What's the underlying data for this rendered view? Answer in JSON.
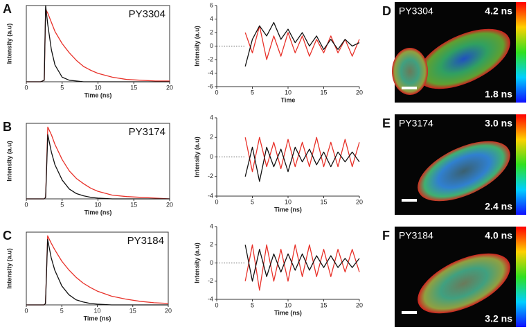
{
  "chart_data": [
    {
      "type": "line",
      "panel_label": "A",
      "annotation": "PY3304",
      "xlabel": "Time (ns)",
      "ylabel": "Intensity (a.u)",
      "xlim": [
        0,
        20
      ],
      "ylim": [
        0,
        1
      ],
      "xticks": [
        0,
        5,
        10,
        15,
        20
      ],
      "x": [
        0,
        2,
        2.5,
        2.7,
        3,
        3.5,
        4,
        5,
        6,
        7,
        8,
        9,
        10,
        12,
        14,
        16,
        18,
        20
      ],
      "series": [
        {
          "color": "#e8322a",
          "values": [
            0,
            0,
            0.02,
            0.95,
            0.9,
            0.78,
            0.66,
            0.5,
            0.38,
            0.28,
            0.2,
            0.15,
            0.11,
            0.06,
            0.03,
            0.02,
            0.01,
            0.01
          ]
        },
        {
          "color": "#111111",
          "values": [
            0,
            0,
            0.02,
            1.0,
            0.75,
            0.42,
            0.22,
            0.06,
            0.02,
            0.01,
            0,
            0,
            0,
            0,
            0,
            0,
            0,
            0
          ]
        }
      ]
    },
    {
      "type": "line",
      "xlabel": "Time",
      "ylabel": "Intensity (a.u)",
      "xlim": [
        0,
        20
      ],
      "ylim": [
        -6,
        6
      ],
      "xticks": [
        0,
        5,
        10,
        15,
        20
      ],
      "yticks": [
        -6,
        -4,
        -2,
        0,
        2,
        4,
        6
      ],
      "reference_y": 0,
      "x": [
        4,
        5,
        6,
        7,
        8,
        9,
        10,
        11,
        12,
        13,
        14,
        15,
        16,
        17,
        18,
        19,
        20
      ],
      "series": [
        {
          "color": "#e8322a",
          "values": [
            2,
            -1,
            3,
            -2,
            1.5,
            -1.5,
            2,
            -1,
            1.5,
            -1.5,
            1,
            -1,
            1.5,
            -1,
            1,
            -1.5,
            1
          ]
        },
        {
          "color": "#111111",
          "values": [
            -3,
            1,
            3,
            1.5,
            3.5,
            1,
            2.5,
            0.5,
            2,
            0,
            1.5,
            -0.5,
            1,
            -0.5,
            1,
            0,
            0.5
          ]
        }
      ]
    },
    {
      "type": "line",
      "panel_label": "B",
      "annotation": "PY3174",
      "xlabel": "Time (ns)",
      "ylabel": "Intensity (a.u)",
      "xlim": [
        0,
        20
      ],
      "ylim": [
        0,
        1
      ],
      "xticks": [
        0,
        5,
        10,
        15,
        20
      ],
      "x": [
        0,
        2,
        2.5,
        2.7,
        3,
        3.5,
        4,
        5,
        6,
        7,
        8,
        9,
        10,
        12,
        14,
        16,
        18,
        20
      ],
      "series": [
        {
          "color": "#e8322a",
          "values": [
            0,
            0,
            0,
            0.02,
            0.95,
            0.85,
            0.72,
            0.52,
            0.37,
            0.27,
            0.2,
            0.14,
            0.1,
            0.05,
            0.03,
            0.02,
            0.01,
            0
          ]
        },
        {
          "color": "#111111",
          "values": [
            0,
            0,
            0,
            0.02,
            0.85,
            0.62,
            0.45,
            0.25,
            0.13,
            0.07,
            0.04,
            0.02,
            0.01,
            0,
            0,
            0,
            0,
            0
          ]
        }
      ]
    },
    {
      "type": "line",
      "xlabel": "Time (ns)",
      "ylabel": "Intensity (a.u)",
      "xlim": [
        0,
        20
      ],
      "ylim": [
        -4,
        4
      ],
      "xticks": [
        0,
        5,
        10,
        15,
        20
      ],
      "yticks": [
        -4,
        -2,
        0,
        2,
        4
      ],
      "reference_y": 0,
      "x": [
        4,
        5,
        6,
        7,
        8,
        9,
        10,
        11,
        12,
        13,
        14,
        15,
        16,
        17,
        18,
        19,
        20
      ],
      "series": [
        {
          "color": "#e8322a",
          "values": [
            2,
            -1.5,
            2,
            -1,
            1.5,
            -1.2,
            1.8,
            -1,
            1.5,
            -1,
            2,
            -1,
            1.5,
            -1,
            1.8,
            -1,
            1.5
          ]
        },
        {
          "color": "#111111",
          "values": [
            -2,
            1,
            -2.5,
            1,
            -1,
            0.8,
            -1.5,
            1,
            -0.5,
            0.8,
            -0.8,
            0.5,
            -1,
            0.5,
            -0.5,
            0.5,
            -0.5
          ]
        }
      ]
    },
    {
      "type": "line",
      "panel_label": "C",
      "annotation": "PY3184",
      "xlabel": "Time (ns)",
      "ylabel": "Intensity (a.u)",
      "xlim": [
        0,
        20
      ],
      "ylim": [
        0,
        1
      ],
      "xticks": [
        0,
        5,
        10,
        15,
        20
      ],
      "x": [
        0,
        2,
        2.5,
        2.7,
        3,
        3.5,
        4,
        5,
        6,
        7,
        8,
        9,
        10,
        12,
        14,
        16,
        18,
        20
      ],
      "series": [
        {
          "color": "#e8322a",
          "values": [
            0,
            0,
            0,
            0.02,
            0.95,
            0.85,
            0.76,
            0.6,
            0.48,
            0.38,
            0.3,
            0.24,
            0.19,
            0.12,
            0.08,
            0.05,
            0.03,
            0.02
          ]
        },
        {
          "color": "#111111",
          "values": [
            0,
            0,
            0,
            0.02,
            0.9,
            0.65,
            0.48,
            0.26,
            0.14,
            0.07,
            0.04,
            0.02,
            0.01,
            0,
            0,
            0,
            0,
            0
          ]
        }
      ]
    },
    {
      "type": "line",
      "xlabel": "Time (ns)",
      "ylabel": "Intensity (a.u)",
      "xlim": [
        0,
        20
      ],
      "ylim": [
        -4,
        4
      ],
      "xticks": [
        0,
        5,
        10,
        15,
        20
      ],
      "yticks": [
        4,
        2,
        0,
        -2,
        -4
      ],
      "reference_y": 0,
      "x": [
        4,
        5,
        6,
        7,
        8,
        9,
        10,
        11,
        12,
        13,
        14,
        15,
        16,
        17,
        18,
        19,
        20
      ],
      "series": [
        {
          "color": "#e8322a",
          "values": [
            -2,
            2,
            -3,
            2,
            -2,
            1.5,
            -2,
            2,
            -1.5,
            2,
            -1.5,
            1.5,
            -1.5,
            1.5,
            -1,
            1.5,
            -1
          ]
        },
        {
          "color": "#111111",
          "values": [
            2,
            -2,
            1.5,
            -1.5,
            1,
            -1,
            1,
            -0.8,
            1,
            -0.8,
            0.8,
            -0.5,
            0.8,
            -0.5,
            0.5,
            -0.5,
            0.5
          ]
        }
      ]
    }
  ],
  "images": [
    {
      "panel_label": "D",
      "name": "PY3304",
      "max": "4.2 ns",
      "min": "1.8 ns"
    },
    {
      "panel_label": "E",
      "name": "PY3174",
      "max": "3.0 ns",
      "min": "2.4 ns"
    },
    {
      "panel_label": "F",
      "name": "PY3184",
      "max": "4.0 ns",
      "min": "3.2 ns"
    }
  ]
}
